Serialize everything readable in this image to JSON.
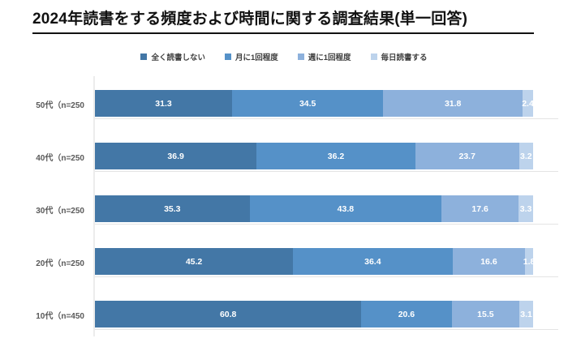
{
  "page": {
    "title": "2024年読書をする頻度および時間に関する調査結果(単一回答)"
  },
  "colors": {
    "series_1": "#4377A6",
    "series_2": "#5591C8",
    "series_3": "#8DB1DC",
    "series_4": "#BDD3EC",
    "title_text": "#111111",
    "category_label_text": "#595959",
    "legend_text": "#3f3f3f",
    "value_label_text": "#ffffff",
    "gridline": "#e4e4e4",
    "axis_line": "#ececec"
  },
  "chart_data": {
    "type": "bar",
    "variant": "horizontal-stacked",
    "stacking": "percent",
    "title": "2024年読書をする頻度および時間に関する調査結果(単一回答)",
    "legend_position": "top",
    "grid": "category-separators",
    "value_labels": true,
    "xlim": [
      0,
      100
    ],
    "categories": [
      "50代（n=250",
      "40代（n=250",
      "30代（n=250",
      "20代（n=250",
      "10代（n=450"
    ],
    "series": [
      {
        "name": "全く読書しない",
        "color": "#4377A6",
        "values": [
          31.3,
          36.9,
          35.3,
          45.2,
          60.8
        ]
      },
      {
        "name": "月に1回程度",
        "color": "#5591C8",
        "values": [
          34.5,
          36.2,
          43.8,
          36.4,
          20.6
        ]
      },
      {
        "name": "週に1回程度",
        "color": "#8DB1DC",
        "values": [
          31.8,
          23.7,
          17.6,
          16.6,
          15.5
        ]
      },
      {
        "name": "毎日読書する",
        "color": "#BDD3EC",
        "values": [
          2.4,
          3.2,
          3.3,
          1.8,
          3.1
        ]
      }
    ]
  },
  "layout_numbers": {
    "row_count": "5",
    "series_count": "4"
  }
}
